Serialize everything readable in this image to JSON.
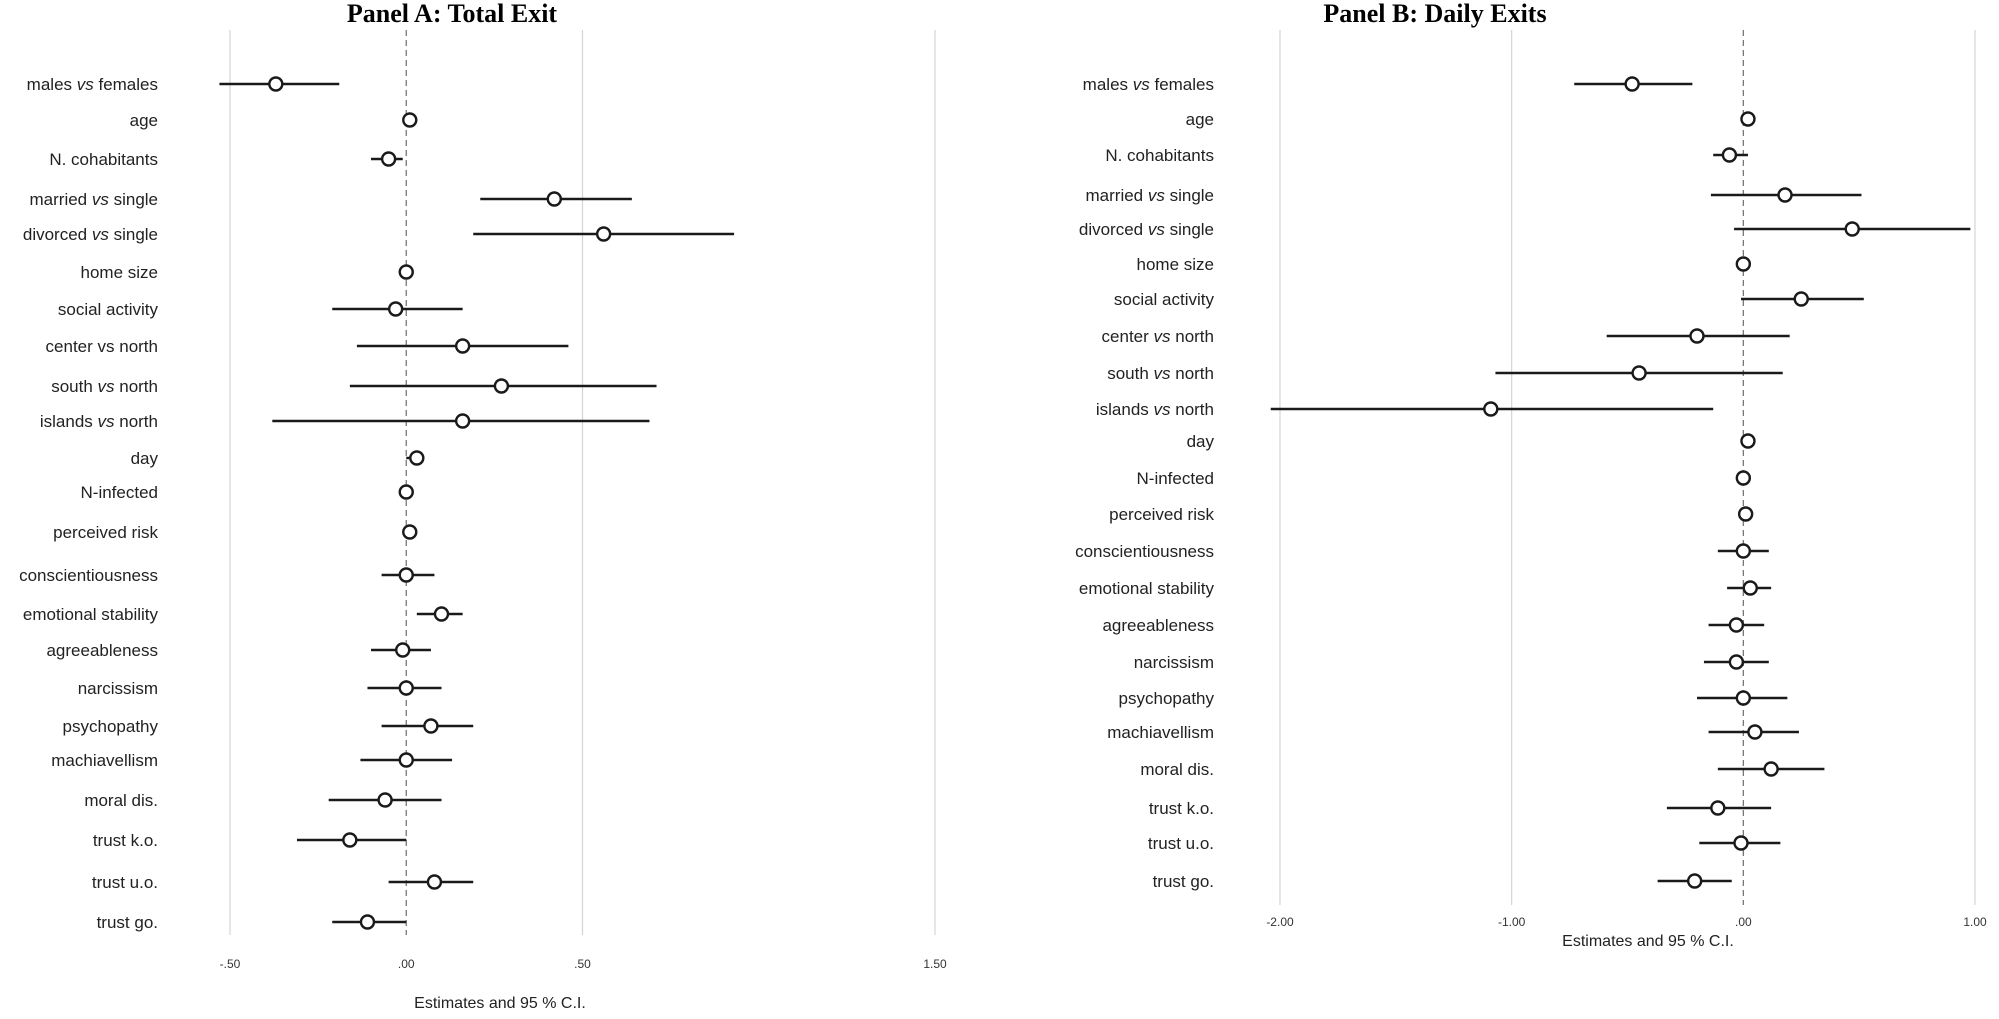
{
  "chart_data": [
    {
      "type": "forest",
      "title": "Panel A: Total Exit",
      "xlabel": "Estimates and 95 % C.I.",
      "xlim": [
        -0.5,
        1.5
      ],
      "xticks": [
        -0.5,
        0.0,
        0.5,
        1.5
      ],
      "xtick_labels": [
        "-.50",
        ".00",
        ".50",
        "1.50"
      ],
      "reference_line": 0,
      "rows": [
        {
          "label": [
            "males ",
            "vs",
            " females"
          ],
          "estimate": -0.37,
          "ci": [
            -0.53,
            -0.19
          ]
        },
        {
          "label": [
            "age"
          ],
          "estimate": 0.01,
          "ci": [
            0.0,
            0.01
          ]
        },
        {
          "label": [
            "N. cohabitants"
          ],
          "estimate": -0.05,
          "ci": [
            -0.1,
            -0.01
          ]
        },
        {
          "label": [
            "married ",
            "vs",
            " single"
          ],
          "estimate": 0.42,
          "ci": [
            0.21,
            0.64
          ]
        },
        {
          "label": [
            "divorced ",
            "vs",
            " single"
          ],
          "estimate": 0.56,
          "ci": [
            0.19,
            0.93
          ]
        },
        {
          "label": [
            "home size"
          ],
          "estimate": 0.0,
          "ci": [
            -0.01,
            0.01
          ]
        },
        {
          "label": [
            "social activity"
          ],
          "estimate": -0.03,
          "ci": [
            -0.21,
            0.16
          ]
        },
        {
          "label": [
            "center vs north"
          ],
          "estimate": 0.16,
          "ci": [
            -0.14,
            0.46
          ]
        },
        {
          "label": [
            "south ",
            "vs",
            " north"
          ],
          "estimate": 0.27,
          "ci": [
            -0.16,
            0.71
          ]
        },
        {
          "label": [
            "islands ",
            "vs",
            " north"
          ],
          "estimate": 0.16,
          "ci": [
            -0.38,
            0.69
          ]
        },
        {
          "label": [
            "day"
          ],
          "estimate": 0.03,
          "ci": [
            0.0,
            0.05
          ]
        },
        {
          "label": [
            "N-infected"
          ],
          "estimate": 0.0,
          "ci": [
            -0.01,
            0.01
          ]
        },
        {
          "label": [
            "perceived risk"
          ],
          "estimate": 0.01,
          "ci": [
            0.0,
            0.02
          ]
        },
        {
          "label": [
            "conscientiousness"
          ],
          "estimate": 0.0,
          "ci": [
            -0.07,
            0.08
          ]
        },
        {
          "label": [
            "emotional stability"
          ],
          "estimate": 0.1,
          "ci": [
            0.03,
            0.16
          ]
        },
        {
          "label": [
            "agreeableness"
          ],
          "estimate": -0.01,
          "ci": [
            -0.1,
            0.07
          ]
        },
        {
          "label": [
            "narcissism"
          ],
          "estimate": 0.0,
          "ci": [
            -0.11,
            0.1
          ]
        },
        {
          "label": [
            "psychopathy"
          ],
          "estimate": 0.07,
          "ci": [
            -0.07,
            0.19
          ]
        },
        {
          "label": [
            "machiavellism"
          ],
          "estimate": 0.0,
          "ci": [
            -0.13,
            0.13
          ]
        },
        {
          "label": [
            "moral dis."
          ],
          "estimate": -0.06,
          "ci": [
            -0.22,
            0.1
          ]
        },
        {
          "label": [
            "trust k.o."
          ],
          "estimate": -0.16,
          "ci": [
            -0.31,
            0.0
          ]
        },
        {
          "label": [
            "trust  u.o."
          ],
          "estimate": 0.08,
          "ci": [
            -0.05,
            0.19
          ]
        },
        {
          "label": [
            "trust  go."
          ],
          "estimate": -0.11,
          "ci": [
            -0.21,
            0.0
          ]
        }
      ]
    },
    {
      "type": "forest",
      "title": "Panel B: Daily Exits",
      "xlabel": "Estimates and 95 % C.I.",
      "xlim": [
        -2.0,
        1.0
      ],
      "xticks": [
        -2.0,
        -1.0,
        0.0,
        1.0
      ],
      "xtick_labels": [
        "-2.00",
        "-1.00",
        ".00",
        "1.00"
      ],
      "reference_line": 0,
      "rows": [
        {
          "label": [
            "males ",
            "vs",
            " females"
          ],
          "estimate": -0.48,
          "ci": [
            -0.73,
            -0.22
          ]
        },
        {
          "label": [
            "age"
          ],
          "estimate": 0.02,
          "ci": [
            0.0,
            0.03
          ]
        },
        {
          "label": [
            "N. cohabitants"
          ],
          "estimate": -0.06,
          "ci": [
            -0.13,
            0.02
          ]
        },
        {
          "label": [
            "married ",
            "vs",
            " single"
          ],
          "estimate": 0.18,
          "ci": [
            -0.14,
            0.51
          ]
        },
        {
          "label": [
            "divorced ",
            "vs",
            " single"
          ],
          "estimate": 0.47,
          "ci": [
            -0.04,
            0.98
          ]
        },
        {
          "label": [
            "home size"
          ],
          "estimate": 0.0,
          "ci": [
            -0.01,
            0.01
          ]
        },
        {
          "label": [
            "social activity"
          ],
          "estimate": 0.25,
          "ci": [
            -0.01,
            0.52
          ]
        },
        {
          "label": [
            "center ",
            "vs",
            " north"
          ],
          "estimate": -0.2,
          "ci": [
            -0.59,
            0.2
          ]
        },
        {
          "label": [
            "south ",
            "vs",
            " north"
          ],
          "estimate": -0.45,
          "ci": [
            -1.07,
            0.17
          ]
        },
        {
          "label": [
            "islands ",
            "vs",
            " north"
          ],
          "estimate": -1.09,
          "ci": [
            -2.04,
            -0.13
          ]
        },
        {
          "label": [
            "day"
          ],
          "estimate": 0.02,
          "ci": [
            0.0,
            0.04
          ]
        },
        {
          "label": [
            "N-infected"
          ],
          "estimate": 0.0,
          "ci": [
            -0.01,
            0.01
          ]
        },
        {
          "label": [
            "perceived risk"
          ],
          "estimate": 0.01,
          "ci": [
            -0.01,
            0.02
          ]
        },
        {
          "label": [
            "conscientiousness"
          ],
          "estimate": 0.0,
          "ci": [
            -0.11,
            0.11
          ]
        },
        {
          "label": [
            "emotional stability"
          ],
          "estimate": 0.03,
          "ci": [
            -0.07,
            0.12
          ]
        },
        {
          "label": [
            "agreeableness"
          ],
          "estimate": -0.03,
          "ci": [
            -0.15,
            0.09
          ]
        },
        {
          "label": [
            "narcissism"
          ],
          "estimate": -0.03,
          "ci": [
            -0.17,
            0.11
          ]
        },
        {
          "label": [
            "psychopathy"
          ],
          "estimate": 0.0,
          "ci": [
            -0.2,
            0.19
          ]
        },
        {
          "label": [
            "machiavellism"
          ],
          "estimate": 0.05,
          "ci": [
            -0.15,
            0.24
          ]
        },
        {
          "label": [
            "moral dis."
          ],
          "estimate": 0.12,
          "ci": [
            -0.11,
            0.35
          ]
        },
        {
          "label": [
            "trust k.o."
          ],
          "estimate": -0.11,
          "ci": [
            -0.33,
            0.12
          ]
        },
        {
          "label": [
            "trust  u.o."
          ],
          "estimate": -0.01,
          "ci": [
            -0.19,
            0.16
          ]
        },
        {
          "label": [
            "trust  go."
          ],
          "estimate": -0.21,
          "ci": [
            -0.37,
            -0.05
          ]
        }
      ]
    }
  ]
}
